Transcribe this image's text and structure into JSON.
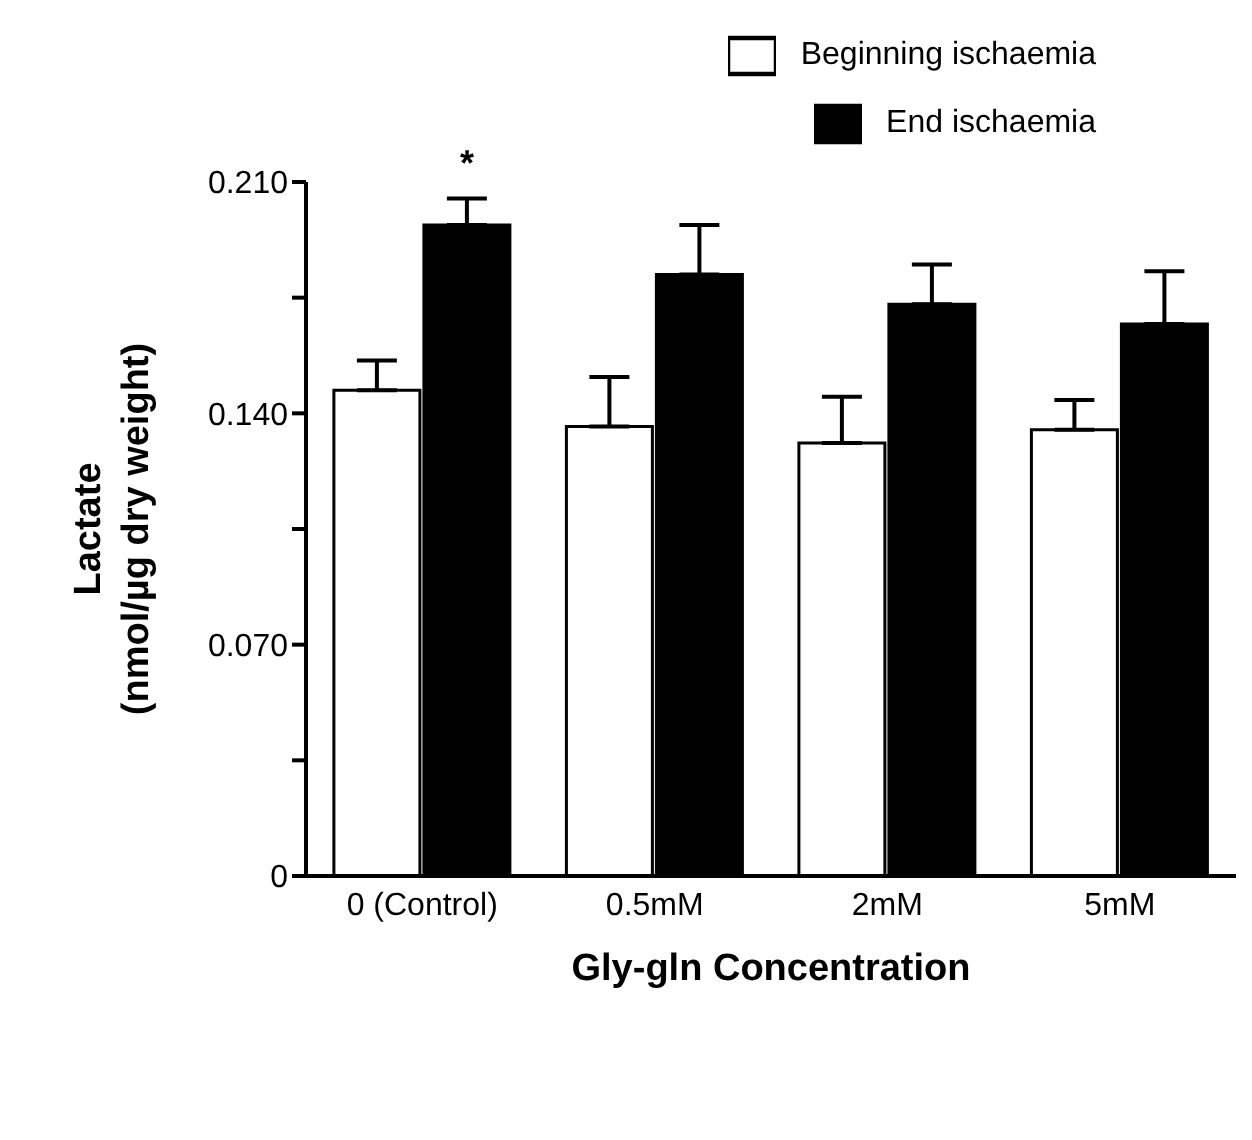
{
  "chart_data": {
    "type": "bar",
    "xlabel": "Gly-gln Concentration",
    "ylabel": "Lactate\n(nmol/µg dry weight)",
    "categories": [
      "0 (Control)",
      "0.5mM",
      "2mM",
      "5mM"
    ],
    "series": [
      {
        "name": "Beginning ischaemia",
        "color": "#ffffff",
        "values": [
          0.147,
          0.136,
          0.131,
          0.135
        ],
        "errors": [
          [
            0.147,
            0.156
          ],
          [
            0.136,
            0.151
          ],
          [
            0.131,
            0.145
          ],
          [
            0.135,
            0.144
          ]
        ]
      },
      {
        "name": "End ischaemia",
        "color": "#000000",
        "values": [
          0.197,
          0.182,
          0.173,
          0.167
        ],
        "errors": [
          [
            0.197,
            0.205
          ],
          [
            0.182,
            0.197
          ],
          [
            0.173,
            0.185
          ],
          [
            0.167,
            0.183
          ]
        ]
      }
    ],
    "ylim": [
      0,
      0.21
    ],
    "yticks": [
      0,
      {
        "value": 0.035,
        "label": null
      },
      {
        "value": 0.07,
        "label": "0.070"
      },
      {
        "value": 0.105,
        "label": null
      },
      {
        "value": 0.14,
        "label": "0.140"
      },
      {
        "value": 0.175,
        "label": null
      },
      {
        "value": 0.21,
        "label": "0.210"
      }
    ],
    "annotations": [
      "*"
    ],
    "grid": false,
    "legend": "top right"
  }
}
